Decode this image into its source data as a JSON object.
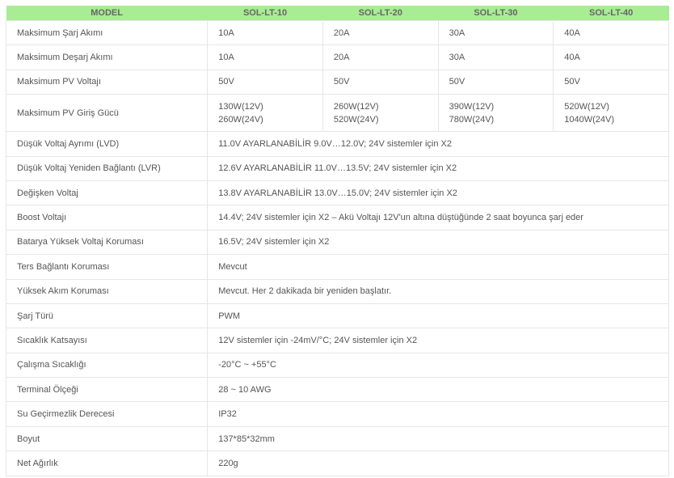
{
  "header": [
    "MODEL",
    "SOL-LT-10",
    "SOL-LT-20",
    "SOL-LT-30",
    "SOL-LT-40"
  ],
  "model_rows": [
    {
      "label": "Maksimum Şarj Akımı",
      "values": [
        "10A",
        "20A",
        "30A",
        "40A"
      ]
    },
    {
      "label": "Maksimum Deşarj Akımı",
      "values": [
        "10A",
        "20A",
        "30A",
        "40A"
      ]
    },
    {
      "label": "Maksimum PV Voltajı",
      "values": [
        "50V",
        "50V",
        "50V",
        "50V"
      ]
    }
  ],
  "pv_power": {
    "label": "Maksimum PV Giriş Gücü",
    "values": [
      [
        "130W(12V)",
        "260W(24V)"
      ],
      [
        "260W(12V)",
        "520W(24V)"
      ],
      [
        "390W(12V)",
        "780W(24V)"
      ],
      [
        "520W(12V)",
        "1040W(24V)"
      ]
    ]
  },
  "common_rows": [
    {
      "label": "Düşük Voltaj Ayrımı (LVD)",
      "value": "11.0V AYARLANABİLİR 9.0V…12.0V; 24V sistemler için X2"
    },
    {
      "label": "Düşük Voltaj Yeniden Bağlantı (LVR)",
      "value": "12.6V AYARLANABİLİR 11.0V…13.5V; 24V sistemler için X2"
    },
    {
      "label": "Değişken Voltaj",
      "value": "13.8V AYARLANABİLİR 13.0V…15.0V; 24V sistemler için X2"
    },
    {
      "label": "Boost Voltajı",
      "value": "14.4V; 24V sistemler için X2 – Akü Voltajı 12V'un altına düştüğünde 2 saat boyunca şarj eder"
    },
    {
      "label": "Batarya Yüksek Voltaj Koruması",
      "value": "16.5V; 24V sistemler için X2"
    },
    {
      "label": "Ters Bağlantı Koruması",
      "value": "Mevcut"
    },
    {
      "label": "Yüksek Akım Koruması",
      "value": "Mevcut. Her 2 dakikada bir yeniden başlatır."
    },
    {
      "label": "Şarj Türü",
      "value": "PWM"
    },
    {
      "label": "Sıcaklık Katsayısı",
      "value": "12V sistemler için -24mV/°C; 24V sistemler için X2"
    },
    {
      "label": "Çalışma Sıcaklığı",
      "value": "-20°C ~ +55°C"
    },
    {
      "label": "Terminal Ölçeği",
      "value": "28 ~ 10 AWG"
    },
    {
      "label": "Su Geçirmezlik Derecesi",
      "value": "IP32"
    },
    {
      "label": "Boyut",
      "value": "137*85*32mm"
    },
    {
      "label": "Net Ağırlık",
      "value": "220g"
    }
  ]
}
